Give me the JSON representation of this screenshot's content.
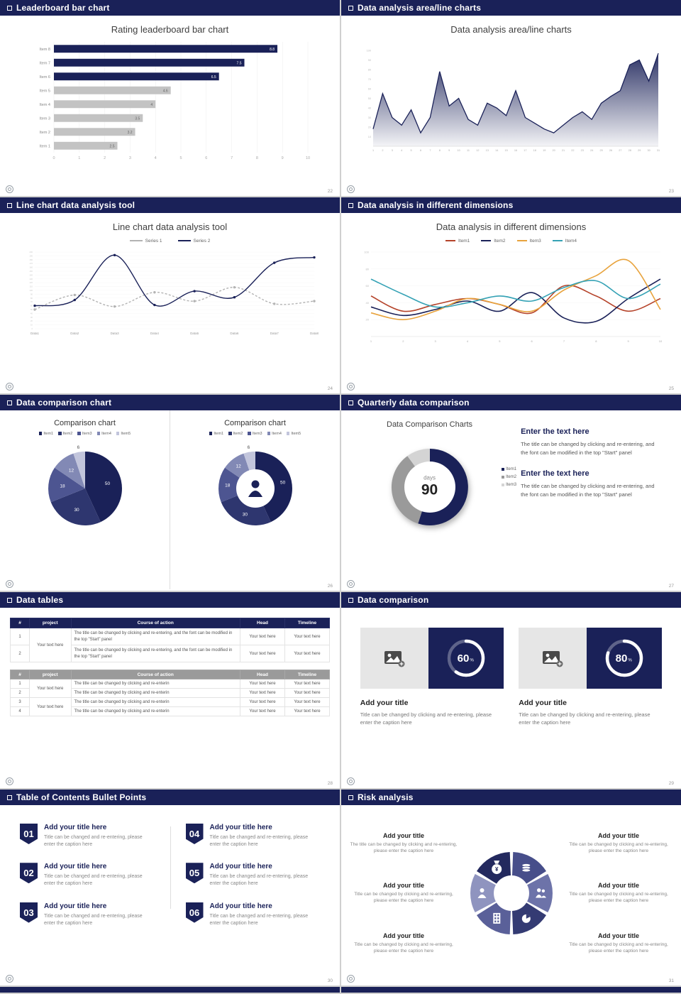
{
  "deck": {
    "accent_navy": "#1a2158",
    "muted_gray": "#c3c3c3"
  },
  "slides": [
    {
      "header": "Leaderboard bar chart",
      "title": "Rating leaderboard bar chart",
      "page": "22",
      "chart": {
        "type": "bar-horizontal",
        "categories": [
          "Item 8",
          "Item 7",
          "Item 6",
          "Item 5",
          "Item 4",
          "Item 3",
          "Item 2",
          "Item 1"
        ],
        "values": [
          8.8,
          7.5,
          6.5,
          4.6,
          4,
          3.5,
          3.2,
          2.5
        ],
        "highlight_count": 3,
        "bar_color": "#1a2158",
        "muted_color": "#c3c3c3",
        "xticks": [
          0,
          1,
          2,
          3,
          4,
          5,
          6,
          7,
          8,
          9,
          10
        ],
        "xmax": 10
      }
    },
    {
      "header": "Data analysis area/line charts",
      "title": "Data analysis area/line charts",
      "page": "23",
      "chart": {
        "type": "area",
        "values": [
          18,
          55,
          30,
          22,
          38,
          14,
          30,
          78,
          42,
          50,
          28,
          22,
          45,
          40,
          32,
          58,
          30,
          24,
          18,
          14,
          22,
          30,
          36,
          28,
          45,
          52,
          58,
          85,
          90,
          68,
          97
        ],
        "ymax": 100,
        "ytick_step": 10,
        "line_color": "#1a2158"
      }
    },
    {
      "header": "Line chart data analysis tool",
      "title": "Line chart data analysis tool",
      "page": "24",
      "legend": [
        {
          "label": "Series 1",
          "color": "#b3b3b3"
        },
        {
          "label": "Series 2",
          "color": "#1a2158"
        }
      ],
      "chart": {
        "type": "line",
        "xlabels": [
          "Data1",
          "Data2",
          "Data3",
          "Data4",
          "Data5",
          "Data6",
          "Data7",
          "Data8"
        ],
        "ymax": 200,
        "ytick_step": 10,
        "series": [
          {
            "name": "Series 1",
            "color": "#b3b3b3",
            "dashed": true,
            "values": [
              50,
              88,
              58,
              95,
              72,
              108,
              65,
              72
            ]
          },
          {
            "name": "Series 2",
            "color": "#1a2158",
            "dashed": false,
            "values": [
              60,
              75,
              192,
              62,
              98,
              82,
              172,
              186
            ]
          }
        ]
      }
    },
    {
      "header": "Data analysis in different dimensions",
      "title": "Data analysis in different dimensions",
      "page": "25",
      "legend": [
        {
          "label": "Item1",
          "color": "#b5432a"
        },
        {
          "label": "Item2",
          "color": "#1a2158"
        },
        {
          "label": "Item3",
          "color": "#e8a33d"
        },
        {
          "label": "Item4",
          "color": "#35a2b5"
        }
      ],
      "chart": {
        "type": "multi-line",
        "x": [
          1,
          2,
          3,
          4,
          5,
          6,
          7,
          8,
          9,
          10
        ],
        "ymax": 100,
        "ytick_step": 20,
        "series": [
          {
            "name": "Item1",
            "color": "#b5432a",
            "values": [
              48,
              30,
              38,
              45,
              38,
              28,
              60,
              48,
              30,
              45
            ]
          },
          {
            "name": "Item2",
            "color": "#1a2158",
            "values": [
              35,
              25,
              32,
              42,
              30,
              52,
              22,
              18,
              45,
              68
            ]
          },
          {
            "name": "Item3",
            "color": "#e8a33d",
            "values": [
              28,
              20,
              30,
              45,
              38,
              30,
              55,
              72,
              90,
              32
            ]
          },
          {
            "name": "Item4",
            "color": "#35a2b5",
            "values": [
              68,
              50,
              35,
              40,
              48,
              42,
              58,
              66,
              45,
              62
            ]
          }
        ]
      }
    },
    {
      "header": "Data comparison chart",
      "page": "26",
      "left": {
        "title": "Comparison chart",
        "legend": [
          "Item1",
          "Item2",
          "Item3",
          "Item4",
          "Item5"
        ],
        "chart": {
          "type": "pie",
          "values": [
            50,
            30,
            18,
            12,
            6
          ],
          "colors": [
            "#1a2158",
            "#2e366f",
            "#4d5591",
            "#8289b5",
            "#c2c5dc"
          ],
          "r": 52
        }
      },
      "right": {
        "title": "Comparison chart",
        "legend": [
          "Item1",
          "Item2",
          "Item3",
          "Item4",
          "Item5"
        ],
        "chart": {
          "type": "pie",
          "values": [
            50,
            30,
            18,
            12,
            6
          ],
          "colors": [
            "#1a2158",
            "#2e366f",
            "#4d5591",
            "#8289b5",
            "#c2c5dc"
          ],
          "r": 52,
          "hole": 27,
          "center_icon": "person-icon"
        }
      }
    },
    {
      "header": "Quarterly data comparison",
      "title": "Data Comparison Charts",
      "page": "27",
      "chart": {
        "type": "pie",
        "values": [
          55,
          35,
          10
        ],
        "colors": [
          "#1a2158",
          "#9a9a9a",
          "#d4d4d4"
        ],
        "r": 54,
        "hole": 36,
        "labels": false
      },
      "center": {
        "label": "days",
        "value": "90"
      },
      "legend": [
        "Item1",
        "Item2",
        "Item3"
      ],
      "blocks": [
        {
          "heading": "Enter the text here",
          "body": "The title can be changed by clicking and re-entering, and the font can be modified in the top \"Start\" panel"
        },
        {
          "heading": "Enter the text here",
          "body": "The title can be changed by clicking and re-entering, and the font can be modified in the top \"Start\" panel"
        }
      ]
    },
    {
      "header": "Data tables",
      "page": "28",
      "table1": {
        "columns": [
          "#",
          "project",
          "Course of action",
          "Head",
          "Timeline"
        ],
        "rows": [
          {
            "num": "1",
            "project": "Your text here",
            "action": "The title can be changed by clicking and re-entering, and the font can be modified in the top \"Start\" panel",
            "head": "Your text here",
            "timeline": "Your text here"
          },
          {
            "num": "2",
            "action": "The title can be changed by clicking and re-entering, and the font can be modified in the top \"Start\" panel",
            "head": "Your text here",
            "timeline": "Your text here"
          }
        ]
      },
      "table2": {
        "columns": [
          "#",
          "project",
          "Course of action",
          "Head",
          "Timeline"
        ],
        "rows": [
          {
            "num": "1",
            "project": "Your text here",
            "action": "The title can be changed by clicking and re-enterin",
            "head": "Your text here",
            "timeline": "Your text here"
          },
          {
            "num": "2",
            "action": "The title can be changed by clicking and re-enterin",
            "head": "Your text here",
            "timeline": "Your text here"
          },
          {
            "num": "3",
            "project": "Your text here",
            "action": "The title can be changed by clicking and re-enterin",
            "head": "Your text here",
            "timeline": "Your text here"
          },
          {
            "num": "4",
            "action": "The title can be changed by clicking and re-enterin",
            "head": "Your text here",
            "timeline": "Your text here"
          }
        ]
      }
    },
    {
      "header": "Data comparison",
      "page": "29",
      "cards": [
        {
          "ring": {
            "type": "progress-ring",
            "percent": 60
          },
          "title": "Add your title",
          "caption": "Title can be changed by clicking and re-entering, please enter the caption here"
        },
        {
          "ring": {
            "type": "progress-ring",
            "percent": 80
          },
          "title": "Add your title",
          "caption": "Title can be changed by clicking and re-entering, please enter the caption here"
        }
      ]
    },
    {
      "header": "Table of Contents Bullet Points",
      "page": "30",
      "items": [
        {
          "num": "01",
          "title": "Add your title here",
          "caption": "Title can be changed and re-entering, please enter the caption here"
        },
        {
          "num": "02",
          "title": "Add your title here",
          "caption": "Title can be changed and re-entering, please enter the caption here"
        },
        {
          "num": "03",
          "title": "Add your title here",
          "caption": "Title can be changed and re-entering, please enter the caption here"
        },
        {
          "num": "04",
          "title": "Add your title here",
          "caption": "Title can be changed and re-entering, please enter the caption here"
        },
        {
          "num": "05",
          "title": "Add your title here",
          "caption": "Title can be changed and re-entering, please enter the caption here"
        },
        {
          "num": "06",
          "title": "Add your title here",
          "caption": "Title can be changed and re-entering, please enter the caption here"
        }
      ]
    },
    {
      "header": "Risk analysis",
      "page": "31",
      "left_items": [
        {
          "title": "Add your title",
          "caption": "The title can be changed by clicking and re-entering, please enter the caption here"
        },
        {
          "title": "Add your title",
          "caption": "Title can be changed by clicking and re-entering, please enter the caption here"
        },
        {
          "title": "Add your title",
          "caption": "Title can be changed by clicking and re-entering, please enter the caption here"
        }
      ],
      "right_items": [
        {
          "title": "Add your title",
          "caption": "Title can be changed by clicking and re-entering, please enter the caption here"
        },
        {
          "title": "Add your title",
          "caption": "Title can be changed by clicking and re-entering, please enter the caption here"
        },
        {
          "title": "Add your title",
          "caption": "Title can be changed by clicking and re-entering, please enter the caption here"
        }
      ],
      "wheel": {
        "type": "wheel",
        "segments": [
          {
            "color": "#23295e",
            "icon": "money-bag-icon"
          },
          {
            "color": "#474e8a",
            "icon": "coins-icon"
          },
          {
            "color": "#6d73a9",
            "icon": "people-icon"
          },
          {
            "color": "#343b73",
            "icon": "pie-chart-icon"
          },
          {
            "color": "#5a6099",
            "icon": "building-icon"
          },
          {
            "color": "#8f94bf",
            "icon": "person-icon"
          }
        ]
      }
    }
  ]
}
